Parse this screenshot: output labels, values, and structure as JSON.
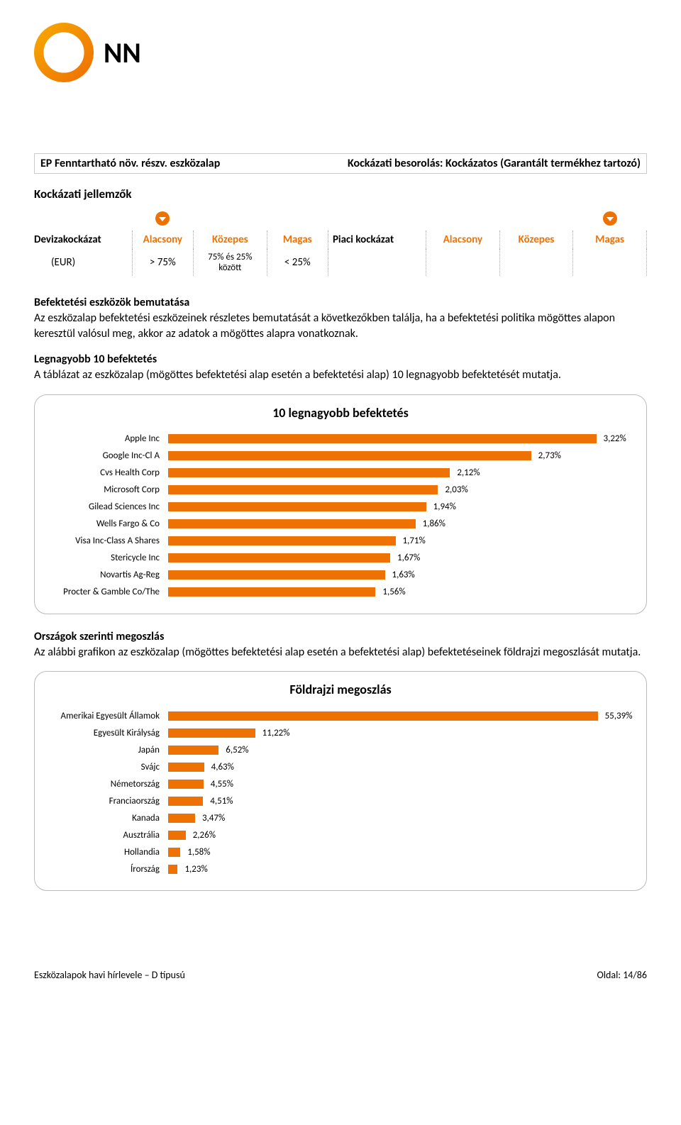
{
  "logo": {
    "brand_text": "NN",
    "circle_stroke": "#ee7203",
    "letter_color": "#ffffff"
  },
  "title_box": {
    "left": "EP Fenntartható növ. részv. eszközalap",
    "right": "Kockázati besorolás: Kockázatos (Garantált termékhez tartozó)"
  },
  "risk_section": {
    "heading": "Kockázati jellemzők",
    "cols": {
      "currency_risk": "Devizakockázat",
      "low": "Alacsony",
      "mid": "Közepes",
      "high": "Magas",
      "market_risk": "Piaci kockázat"
    },
    "row": {
      "eur": "(EUR)",
      "gt75": "> 75%",
      "between": "75% és 25% között",
      "lt25": "< 25%"
    },
    "orange": "#ee7203"
  },
  "intro": {
    "heading": "Befektetési eszközök bemutatása",
    "text": "Az eszközalap befektetési eszközeinek részletes bemutatását a következőkben találja, ha a befektetési politika mögöttes alapon keresztül valósul meg, akkor az adatok a mögöttes alapra vonatkoznak."
  },
  "top10": {
    "heading": "Legnagyobb 10 befektetés",
    "desc": "A táblázat az eszközalap (mögöttes befektetési alap esetén a befektetési alap) 10 legnagyobb befektetését mutatja.",
    "chart_title": "10 legnagyobb befektetés",
    "type": "bar",
    "bar_color": "#ee7203",
    "label_fontsize": 13,
    "value_fontsize": 13,
    "max_pct": 3.5,
    "items": [
      {
        "label": "Apple Inc",
        "value": 3.22,
        "value_str": "3,22%"
      },
      {
        "label": "Google Inc-Cl A",
        "value": 2.73,
        "value_str": "2,73%"
      },
      {
        "label": "Cvs Health Corp",
        "value": 2.12,
        "value_str": "2,12%"
      },
      {
        "label": "Microsoft Corp",
        "value": 2.03,
        "value_str": "2,03%"
      },
      {
        "label": "Gilead Sciences Inc",
        "value": 1.94,
        "value_str": "1,94%"
      },
      {
        "label": "Wells Fargo & Co",
        "value": 1.86,
        "value_str": "1,86%"
      },
      {
        "label": "Visa Inc-Class A Shares",
        "value": 1.71,
        "value_str": "1,71%"
      },
      {
        "label": "Stericycle Inc",
        "value": 1.67,
        "value_str": "1,67%"
      },
      {
        "label": "Novartis Ag-Reg",
        "value": 1.63,
        "value_str": "1,63%"
      },
      {
        "label": "Procter & Gamble Co/The",
        "value": 1.56,
        "value_str": "1,56%"
      }
    ]
  },
  "geo": {
    "heading": "Országok szerinti megoszlás",
    "desc": "Az alábbi grafikon az eszközalap (mögöttes befektetési alap esetén a befektetési alap) befektetéseinek földrajzi megoszlását mutatja.",
    "chart_title": "Földrajzi megoszlás",
    "type": "bar",
    "bar_color": "#ee7203",
    "max_pct": 60,
    "items": [
      {
        "label": "Amerikai Egyesült Államok",
        "value": 55.39,
        "value_str": "55,39%"
      },
      {
        "label": "Egyesült Királyság",
        "value": 11.22,
        "value_str": "11,22%"
      },
      {
        "label": "Japán",
        "value": 6.52,
        "value_str": "6,52%"
      },
      {
        "label": "Svájc",
        "value": 4.63,
        "value_str": "4,63%"
      },
      {
        "label": "Németország",
        "value": 4.55,
        "value_str": "4,55%"
      },
      {
        "label": "Franciaország",
        "value": 4.51,
        "value_str": "4,51%"
      },
      {
        "label": "Kanada",
        "value": 3.47,
        "value_str": "3,47%"
      },
      {
        "label": "Ausztrália",
        "value": 2.26,
        "value_str": "2,26%"
      },
      {
        "label": "Hollandia",
        "value": 1.58,
        "value_str": "1,58%"
      },
      {
        "label": "Írország",
        "value": 1.23,
        "value_str": "1,23%"
      }
    ]
  },
  "footer": {
    "left": "Eszközalapok havi hírlevele – D típusú",
    "right": "Oldal: 14/86"
  }
}
